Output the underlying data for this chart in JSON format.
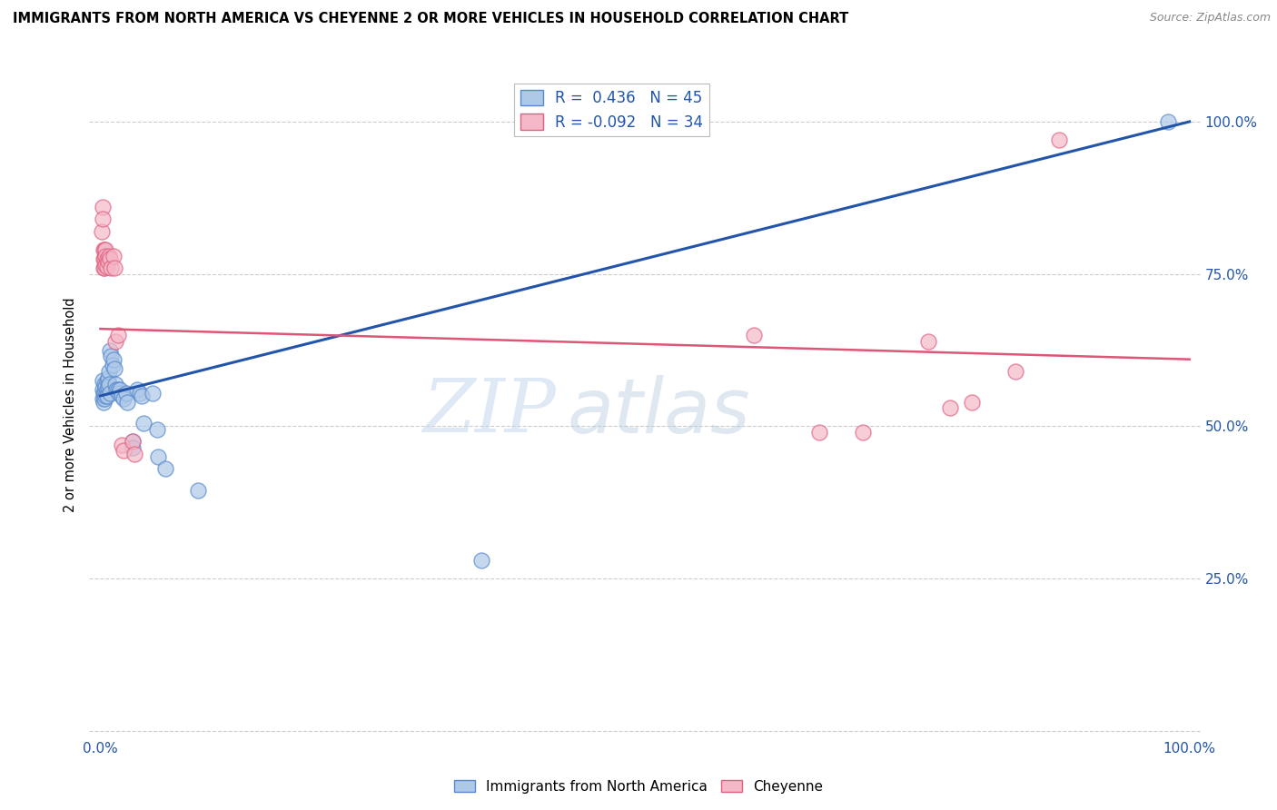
{
  "title": "IMMIGRANTS FROM NORTH AMERICA VS CHEYENNE 2 OR MORE VEHICLES IN HOUSEHOLD CORRELATION CHART",
  "source": "Source: ZipAtlas.com",
  "ylabel": "2 or more Vehicles in Household",
  "legend_blue_r": "R =  0.436",
  "legend_blue_n": "N = 45",
  "legend_pink_r": "R = -0.092",
  "legend_pink_n": "N = 34",
  "legend_blue_label": "Immigrants from North America",
  "legend_pink_label": "Cheyenne",
  "blue_color": "#aec8e8",
  "pink_color": "#f4b8c8",
  "blue_edge_color": "#5588cc",
  "pink_edge_color": "#e06080",
  "blue_line_color": "#2255aa",
  "pink_line_color": "#dd5577",
  "blue_scatter": [
    [
      0.002,
      0.575
    ],
    [
      0.002,
      0.56
    ],
    [
      0.002,
      0.545
    ],
    [
      0.003,
      0.555
    ],
    [
      0.003,
      0.54
    ],
    [
      0.004,
      0.57
    ],
    [
      0.004,
      0.555
    ],
    [
      0.004,
      0.545
    ],
    [
      0.005,
      0.565
    ],
    [
      0.005,
      0.55
    ],
    [
      0.006,
      0.575
    ],
    [
      0.006,
      0.56
    ],
    [
      0.006,
      0.55
    ],
    [
      0.007,
      0.58
    ],
    [
      0.007,
      0.565
    ],
    [
      0.008,
      0.59
    ],
    [
      0.008,
      0.57
    ],
    [
      0.009,
      0.625
    ],
    [
      0.009,
      0.555
    ],
    [
      0.01,
      0.615
    ],
    [
      0.011,
      0.6
    ],
    [
      0.012,
      0.61
    ],
    [
      0.013,
      0.595
    ],
    [
      0.014,
      0.57
    ],
    [
      0.015,
      0.56
    ],
    [
      0.016,
      0.56
    ],
    [
      0.017,
      0.555
    ],
    [
      0.018,
      0.56
    ],
    [
      0.02,
      0.55
    ],
    [
      0.021,
      0.545
    ],
    [
      0.024,
      0.555
    ],
    [
      0.025,
      0.54
    ],
    [
      0.03,
      0.475
    ],
    [
      0.03,
      0.465
    ],
    [
      0.034,
      0.56
    ],
    [
      0.036,
      0.555
    ],
    [
      0.038,
      0.55
    ],
    [
      0.04,
      0.505
    ],
    [
      0.048,
      0.555
    ],
    [
      0.052,
      0.495
    ],
    [
      0.053,
      0.45
    ],
    [
      0.06,
      0.43
    ],
    [
      0.09,
      0.395
    ],
    [
      0.35,
      0.28
    ],
    [
      0.98,
      1.0
    ]
  ],
  "pink_scatter": [
    [
      0.001,
      0.82
    ],
    [
      0.002,
      0.86
    ],
    [
      0.002,
      0.84
    ],
    [
      0.003,
      0.79
    ],
    [
      0.003,
      0.775
    ],
    [
      0.003,
      0.76
    ],
    [
      0.004,
      0.79
    ],
    [
      0.004,
      0.775
    ],
    [
      0.004,
      0.76
    ],
    [
      0.005,
      0.79
    ],
    [
      0.005,
      0.78
    ],
    [
      0.005,
      0.765
    ],
    [
      0.006,
      0.775
    ],
    [
      0.006,
      0.762
    ],
    [
      0.007,
      0.77
    ],
    [
      0.008,
      0.78
    ],
    [
      0.009,
      0.775
    ],
    [
      0.01,
      0.76
    ],
    [
      0.012,
      0.78
    ],
    [
      0.013,
      0.76
    ],
    [
      0.014,
      0.64
    ],
    [
      0.016,
      0.65
    ],
    [
      0.02,
      0.47
    ],
    [
      0.021,
      0.46
    ],
    [
      0.03,
      0.475
    ],
    [
      0.031,
      0.455
    ],
    [
      0.6,
      0.65
    ],
    [
      0.66,
      0.49
    ],
    [
      0.7,
      0.49
    ],
    [
      0.76,
      0.64
    ],
    [
      0.78,
      0.53
    ],
    [
      0.8,
      0.54
    ],
    [
      0.84,
      0.59
    ],
    [
      0.88,
      0.97
    ]
  ],
  "blue_line": [
    [
      0.0,
      0.55
    ],
    [
      1.0,
      1.0
    ]
  ],
  "pink_line": [
    [
      0.0,
      0.66
    ],
    [
      1.0,
      0.61
    ]
  ],
  "watermark_zip": "ZIP",
  "watermark_atlas": "atlas",
  "background_color": "#ffffff",
  "grid_color": "#cccccc",
  "ytick_values": [
    0.0,
    0.25,
    0.5,
    0.75,
    1.0
  ],
  "ytick_labels": [
    "",
    "25.0%",
    "50.0%",
    "75.0%",
    "100.0%"
  ],
  "xtick_values": [
    0.0,
    0.2,
    0.4,
    0.6,
    0.8,
    1.0
  ],
  "xtick_labels": [
    "0.0%",
    "",
    "",
    "",
    "",
    "100.0%"
  ]
}
